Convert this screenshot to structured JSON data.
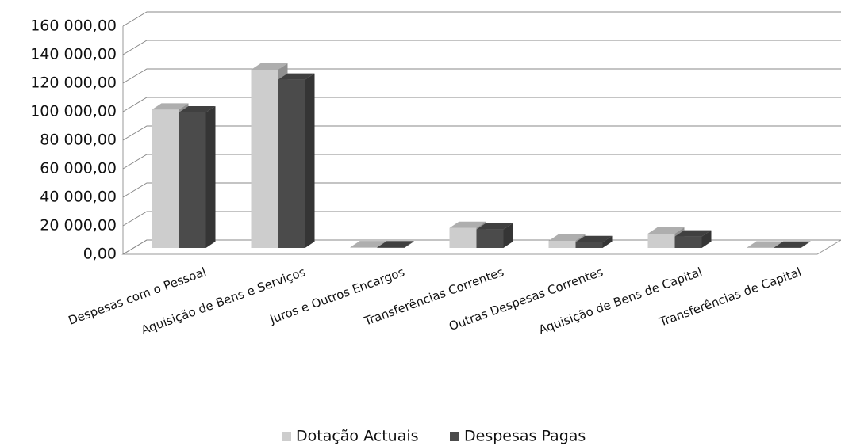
{
  "chart_data": {
    "type": "bar3d",
    "categories": [
      "Despesas com o Pessoal",
      "Aquisição de Bens e Serviços",
      "Juros e Outros Encargos",
      "Transferências Correntes",
      "Outras Despesas Correntes",
      "Aquisição de Bens de Capital",
      "Transferências de Capital"
    ],
    "series": [
      {
        "name": "Dotação Actuais",
        "color": "#cdcdcd",
        "values": [
          97000,
          125000,
          500,
          14000,
          5000,
          10000,
          300
        ]
      },
      {
        "name": "Despesas Pagas",
        "color": "#4b4b4b",
        "values": [
          95000,
          118000,
          400,
          13000,
          4000,
          8000,
          200
        ]
      }
    ],
    "ylim": [
      0,
      160000
    ],
    "yticks": [
      {
        "value": 0,
        "label": "0,00"
      },
      {
        "value": 20000,
        "label": "20 000,00"
      },
      {
        "value": 40000,
        "label": "40 000,00"
      },
      {
        "value": 60000,
        "label": "60 000,00"
      },
      {
        "value": 80000,
        "label": "80 000,00"
      },
      {
        "value": 100000,
        "label": "100 000,00"
      },
      {
        "value": 120000,
        "label": "120 000,00"
      },
      {
        "value": 140000,
        "label": "140 000,00"
      },
      {
        "value": 160000,
        "label": "160 000,00"
      }
    ],
    "grid": true,
    "legend": "bottom"
  }
}
